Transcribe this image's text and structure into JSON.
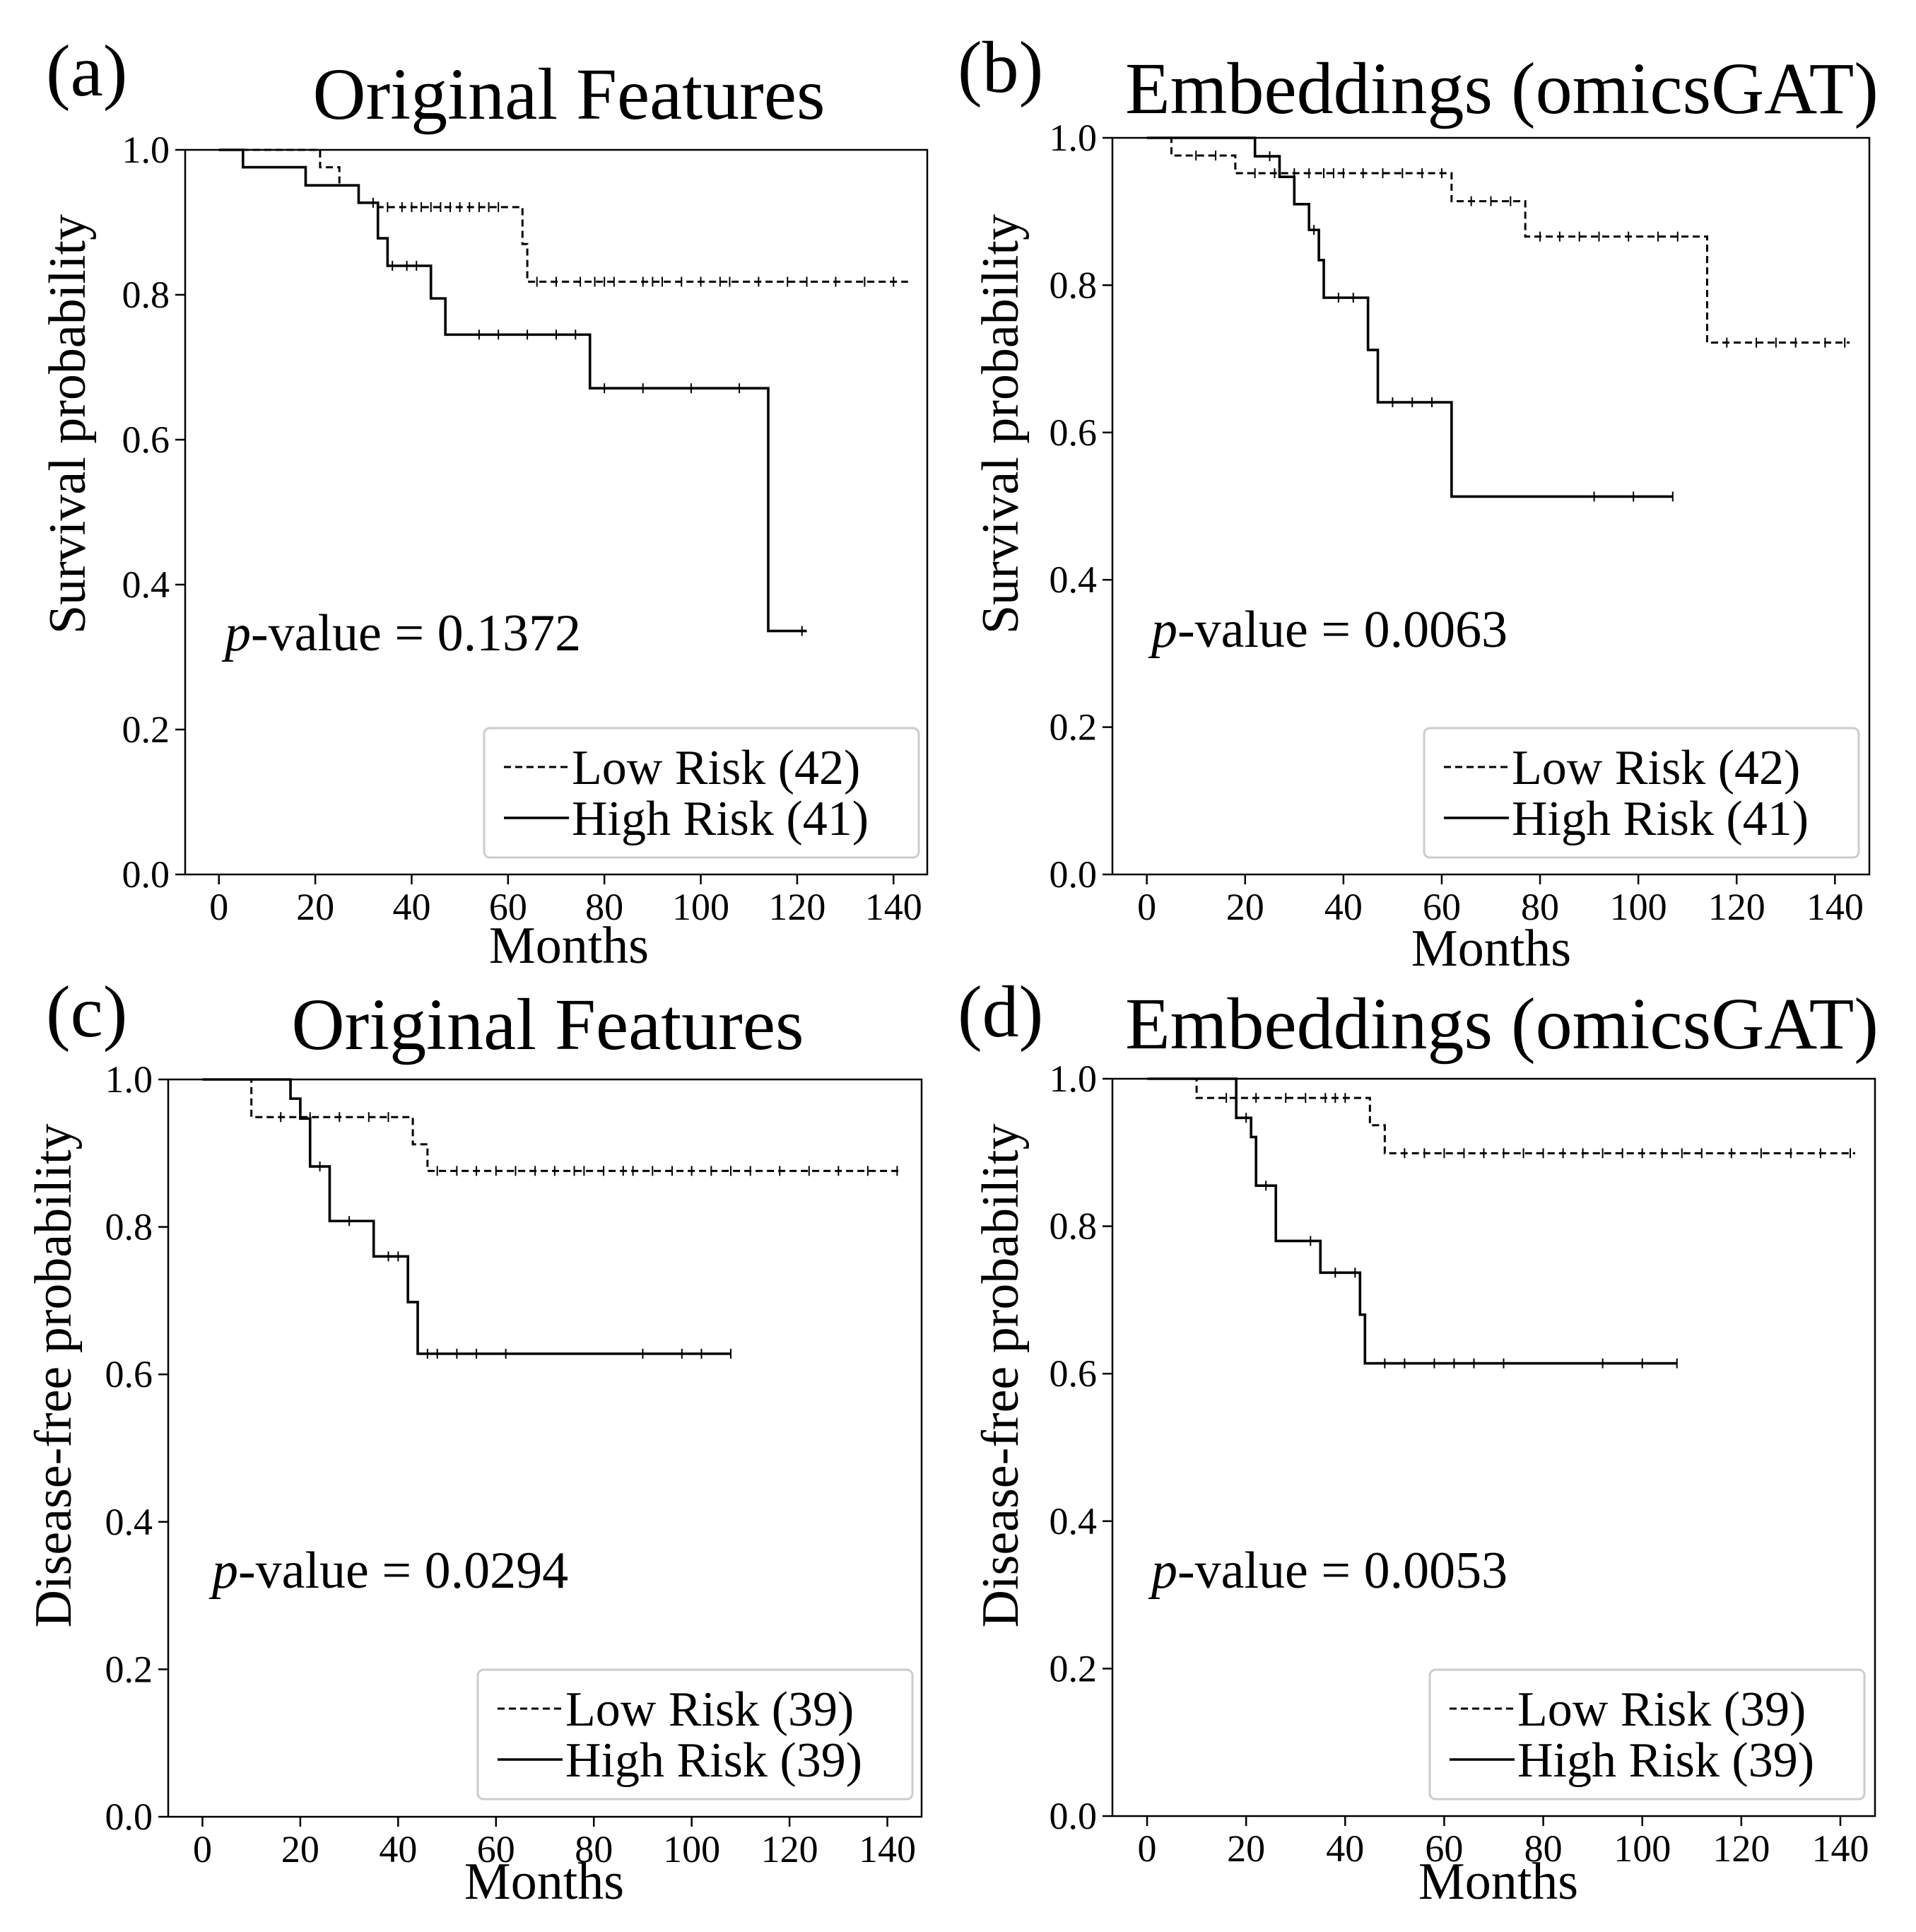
{
  "chart_data": [
    {
      "type": "line",
      "panel_label": "(a)",
      "title": "Original Features",
      "xlabel": "Months",
      "ylabel": "Survival probability",
      "xlim": [
        -7,
        147
      ],
      "ylim": [
        0,
        1.0
      ],
      "xticks": [
        0,
        20,
        40,
        60,
        80,
        100,
        120,
        140
      ],
      "xtick_labels": [
        "0",
        "20",
        "40",
        "60",
        "80",
        "100",
        "120",
        "140"
      ],
      "yticks": [
        0,
        0.2,
        0.4,
        0.6,
        0.8,
        1.0
      ],
      "ytick_labels": [
        "0.0",
        "0.2",
        "0.4",
        "0.6",
        "0.8",
        "1.0"
      ],
      "annotation": {
        "italic": "p",
        "text": "-value = 0.1372"
      },
      "legend": [
        "Low Risk (42)",
        "High Risk (41)"
      ],
      "legend_loc": "lower right",
      "series": [
        {
          "name": "Low Risk (42)",
          "style": "dashed",
          "x": [
            0,
            20,
            21,
            22,
            25,
            27,
            29,
            30,
            33,
            62,
            63,
            64,
            143
          ],
          "y": [
            1.0,
            1.0,
            0.976,
            0.976,
            0.951,
            0.951,
            0.927,
            0.927,
            0.921,
            0.921,
            0.87,
            0.818,
            0.818
          ],
          "censors_x": [
            35,
            38,
            40,
            42,
            44,
            46,
            48,
            50,
            52,
            54,
            56,
            58,
            66,
            70,
            75,
            78,
            80,
            82,
            88,
            90,
            92,
            96,
            100,
            104,
            106,
            112,
            118,
            122,
            128,
            134,
            140
          ]
        },
        {
          "name": "High Risk (41)",
          "style": "solid",
          "x": [
            0,
            5,
            18,
            29,
            33,
            35,
            37,
            44,
            47,
            77,
            114,
            122
          ],
          "y": [
            1.0,
            0.976,
            0.951,
            0.927,
            0.878,
            0.84,
            0.84,
            0.795,
            0.745,
            0.671,
            0.336,
            0.336
          ],
          "censors_x": [
            32,
            36,
            39,
            41,
            54,
            58,
            64,
            70,
            74,
            80,
            88,
            98,
            108,
            121
          ]
        }
      ]
    },
    {
      "type": "line",
      "panel_label": "(b)",
      "title": "Embeddings (omicsGAT)",
      "xlabel": "Months",
      "ylabel": "Survival probability",
      "xlim": [
        -7,
        147
      ],
      "ylim": [
        0,
        1.0
      ],
      "xticks": [
        0,
        20,
        40,
        60,
        80,
        100,
        120,
        140
      ],
      "xtick_labels": [
        "0",
        "20",
        "40",
        "60",
        "80",
        "100",
        "120",
        "140"
      ],
      "yticks": [
        0,
        0.2,
        0.4,
        0.6,
        0.8,
        1.0
      ],
      "ytick_labels": [
        "0.0",
        "0.2",
        "0.4",
        "0.6",
        "0.8",
        "1.0"
      ],
      "annotation": {
        "italic": "p",
        "text": "-value = 0.0063"
      },
      "legend": [
        "Low Risk (42)",
        "High Risk (41)"
      ],
      "legend_loc": "lower right",
      "series": [
        {
          "name": "Low Risk (42)",
          "style": "dashed",
          "x": [
            0,
            5,
            18,
            62,
            77,
            114,
            143
          ],
          "y": [
            1.0,
            0.976,
            0.952,
            0.914,
            0.866,
            0.722,
            0.722
          ],
          "censors_x": [
            10,
            14,
            22,
            26,
            30,
            33,
            36,
            38,
            40,
            44,
            48,
            52,
            56,
            60,
            66,
            70,
            74,
            80,
            84,
            88,
            92,
            98,
            104,
            108,
            118,
            124,
            128,
            132,
            138,
            142
          ]
        },
        {
          "name": "High Risk (41)",
          "style": "solid",
          "x": [
            0,
            20,
            22,
            27,
            30,
            33,
            35,
            36,
            45,
            47,
            62,
            107
          ],
          "y": [
            1.0,
            1.0,
            0.975,
            0.947,
            0.91,
            0.875,
            0.834,
            0.783,
            0.712,
            0.641,
            0.513,
            0.513
          ],
          "censors_x": [
            25,
            34,
            39,
            42,
            50,
            54,
            58,
            91,
            99,
            107
          ]
        }
      ]
    },
    {
      "type": "line",
      "panel_label": "(c)",
      "title": "Original Features",
      "xlabel": "Months",
      "ylabel": "Disease-free probability",
      "xlim": [
        -7,
        147
      ],
      "ylim": [
        0,
        1.0
      ],
      "xticks": [
        0,
        20,
        40,
        60,
        80,
        100,
        120,
        140
      ],
      "xtick_labels": [
        "0",
        "20",
        "40",
        "60",
        "80",
        "100",
        "120",
        "140"
      ],
      "yticks": [
        0,
        0.2,
        0.4,
        0.6,
        0.8,
        1.0
      ],
      "ytick_labels": [
        "0.0",
        "0.2",
        "0.4",
        "0.6",
        "0.8",
        "1.0"
      ],
      "annotation": {
        "italic": "p",
        "text": "-value = 0.0294"
      },
      "legend": [
        "Low Risk (39)",
        "High Risk (39)"
      ],
      "legend_loc": "lower right",
      "series": [
        {
          "name": "Low Risk (39)",
          "style": "dashed",
          "x": [
            0,
            10,
            43,
            46,
            143
          ],
          "y": [
            1.0,
            0.949,
            0.912,
            0.876,
            0.876
          ],
          "censors_x": [
            16,
            22,
            28,
            34,
            38,
            48,
            52,
            56,
            60,
            64,
            68,
            72,
            76,
            78,
            82,
            86,
            88,
            92,
            96,
            100,
            104,
            108,
            112,
            118,
            124,
            130,
            136,
            142
          ]
        },
        {
          "name": "High Risk (39)",
          "style": "solid",
          "x": [
            0,
            18,
            20,
            22,
            26,
            35,
            42,
            44,
            108
          ],
          "y": [
            1.0,
            0.974,
            0.947,
            0.882,
            0.808,
            0.76,
            0.698,
            0.628,
            0.628
          ],
          "censors_x": [
            24,
            30,
            38,
            40,
            46,
            48,
            52,
            56,
            62,
            90,
            98,
            102,
            108
          ]
        }
      ]
    },
    {
      "type": "line",
      "panel_label": "(d)",
      "title": "Embeddings (omicsGAT)",
      "xlabel": "Months",
      "ylabel": "Disease-free probability",
      "xlim": [
        -7,
        147
      ],
      "ylim": [
        0,
        1.0
      ],
      "xticks": [
        0,
        20,
        40,
        60,
        80,
        100,
        120,
        140
      ],
      "xtick_labels": [
        "0",
        "20",
        "40",
        "60",
        "80",
        "100",
        "120",
        "140"
      ],
      "yticks": [
        0,
        0.2,
        0.4,
        0.6,
        0.8,
        1.0
      ],
      "ytick_labels": [
        "0.0",
        "0.2",
        "0.4",
        "0.6",
        "0.8",
        "1.0"
      ],
      "annotation": {
        "italic": "p",
        "text": "-value = 0.0053"
      },
      "legend": [
        "Low Risk (39)",
        "High Risk (39)"
      ],
      "legend_loc": "lower right",
      "series": [
        {
          "name": "Low Risk (39)",
          "style": "dashed",
          "x": [
            0,
            10,
            45,
            48,
            143
          ],
          "y": [
            1.0,
            0.974,
            0.937,
            0.899,
            0.899
          ],
          "censors_x": [
            16,
            22,
            28,
            32,
            36,
            38,
            40,
            52,
            56,
            60,
            64,
            68,
            72,
            76,
            80,
            84,
            88,
            92,
            96,
            100,
            104,
            108,
            112,
            118,
            124,
            130,
            136,
            142
          ]
        },
        {
          "name": "High Risk (39)",
          "style": "solid",
          "x": [
            0,
            18,
            21,
            22,
            26,
            35,
            43,
            44,
            107
          ],
          "y": [
            1.0,
            0.947,
            0.921,
            0.855,
            0.78,
            0.737,
            0.68,
            0.614,
            0.614
          ],
          "censors_x": [
            20,
            24,
            33,
            38,
            42,
            48,
            52,
            58,
            62,
            66,
            72,
            92,
            100,
            107
          ]
        }
      ]
    }
  ]
}
